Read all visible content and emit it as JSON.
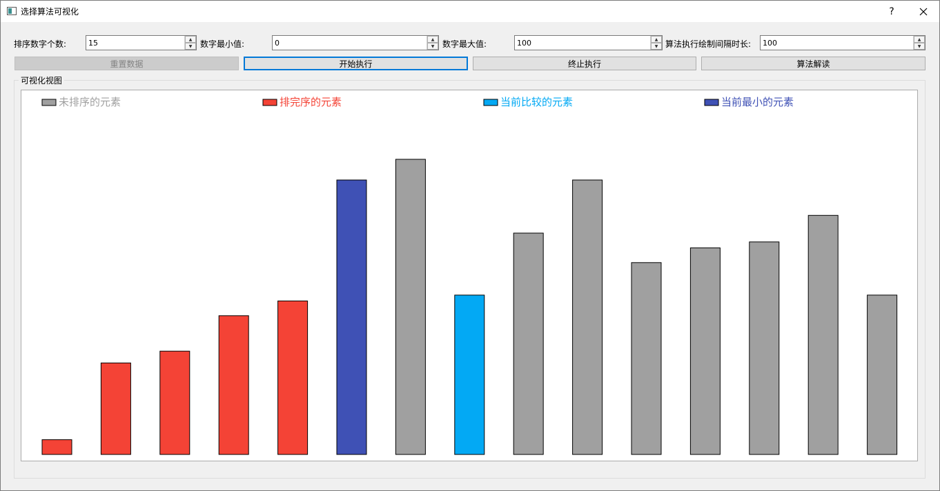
{
  "window": {
    "title": "选择算法可视化",
    "help_label": "?",
    "icons": {
      "app": "window-app-icon",
      "close": "close-icon"
    }
  },
  "controls": {
    "count": {
      "label": "排序数字个数:",
      "value": "15"
    },
    "min": {
      "label": "数字最小值:",
      "value": "0"
    },
    "max": {
      "label": "数字最大值:",
      "value": "100"
    },
    "interval": {
      "label": "算法执行绘制间隔时长:",
      "value": "100"
    }
  },
  "buttons": {
    "reset": "重置数据",
    "start": "开始执行",
    "stop": "终止执行",
    "explain": "算法解读"
  },
  "visual": {
    "group_title": "可视化视图"
  },
  "chart_data": {
    "type": "bar",
    "legend": [
      {
        "name": "未排序的元素",
        "color": "#a0a0a0"
      },
      {
        "name": "排完序的元素",
        "color": "#f44336"
      },
      {
        "name": "当前比较的元素",
        "color": "#03a9f4"
      },
      {
        "name": "当前最小的元素",
        "color": "#3f51b5"
      }
    ],
    "legend_position": "top",
    "values": [
      5,
      31,
      35,
      47,
      52,
      93,
      100,
      54,
      75,
      93,
      65,
      70,
      72,
      81,
      54
    ],
    "states": [
      "sorted",
      "sorted",
      "sorted",
      "sorted",
      "sorted",
      "minimum",
      "unsorted",
      "comparing",
      "unsorted",
      "unsorted",
      "unsorted",
      "unsorted",
      "unsorted",
      "unsorted",
      "unsorted"
    ],
    "ylim": [
      0,
      100
    ],
    "grid": false,
    "colors": {
      "unsorted": "#a0a0a0",
      "sorted": "#f44336",
      "comparing": "#03a9f4",
      "minimum": "#3f51b5"
    }
  }
}
